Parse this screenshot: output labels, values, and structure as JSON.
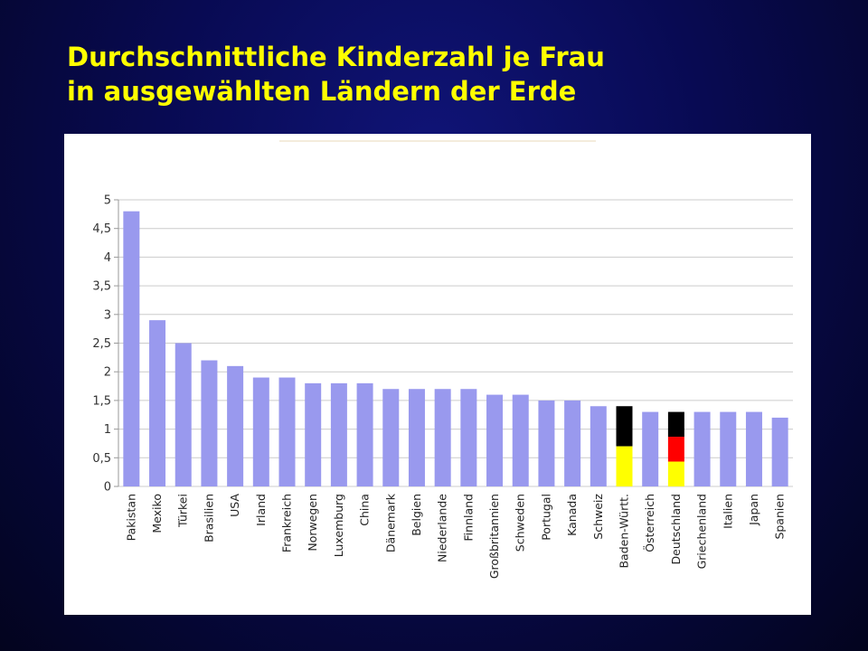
{
  "slide": {
    "title_line1": "Durchschnittliche Kinderzahl je Frau",
    "title_line2": "in ausgewählten Ländern der Erde"
  },
  "colors": {
    "bar": "#9999ee",
    "grid": "#cccccc",
    "flag_black": "#000000",
    "flag_red": "#ff0000",
    "flag_gold": "#ffff00",
    "title": "#ffff00"
  },
  "chart_data": {
    "type": "bar",
    "title": "",
    "xlabel": "",
    "ylabel": "",
    "ylim": [
      0,
      5
    ],
    "yticks": [
      0,
      0.5,
      1,
      1.5,
      2,
      2.5,
      3,
      3.5,
      4,
      4.5,
      5
    ],
    "ytick_labels": [
      "0",
      "0,5",
      "1",
      "1,5",
      "2",
      "2,5",
      "3",
      "3,5",
      "4",
      "4,5",
      "5"
    ],
    "grid": true,
    "categories": [
      "Pakistan",
      "Mexiko",
      "Türkei",
      "Brasilien",
      "USA",
      "Irland",
      "Frankreich",
      "Norwegen",
      "Luxemburg",
      "China",
      "Dänemark",
      "Belgien",
      "Niederlande",
      "Finnland",
      "Großbritannien",
      "Schweden",
      "Portugal",
      "Kanada",
      "Schweiz",
      "Baden-Württ.",
      "Österreich",
      "Deutschland",
      "Griechenland",
      "Italien",
      "Japan",
      "Spanien"
    ],
    "values": [
      4.8,
      2.9,
      2.5,
      2.2,
      2.1,
      1.9,
      1.9,
      1.8,
      1.8,
      1.8,
      1.7,
      1.7,
      1.7,
      1.7,
      1.6,
      1.6,
      1.5,
      1.5,
      1.4,
      1.4,
      1.3,
      1.3,
      1.3,
      1.3,
      1.3,
      1.2
    ],
    "highlight": {
      "Baden-Württ.": "baden-wuerttemberg-flag",
      "Deutschland": "german-flag"
    }
  }
}
